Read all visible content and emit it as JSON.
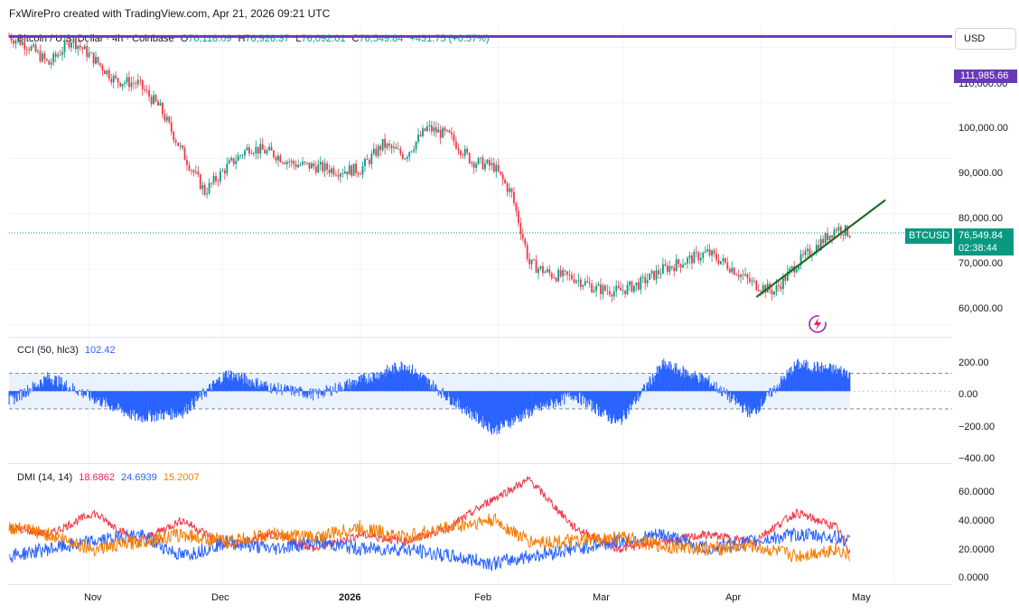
{
  "credit": "FxWirePro created with TradingView.com, Apr 21, 2026 09:21 UTC",
  "header": {
    "symbol": "Bitcoin / U.S. Dollar · 4h · Coinbase",
    "open_label": "O",
    "open": "76,118.09",
    "high_label": "H",
    "high": "76,926.37",
    "low_label": "L",
    "low": "76,092.01",
    "close_label": "C",
    "close": "76,549.84",
    "change": "+431.75 (+0.57%)"
  },
  "currency_button": "USD",
  "colors": {
    "up": "#089981",
    "down": "#f23645",
    "resistance": "#673ab7",
    "trendline": "#1b6e26",
    "cci": "#2962ff",
    "dmi_adx": "#f23645",
    "dmi_plus": "#2962ff",
    "dmi_minus": "#f57c00"
  },
  "price_pane": {
    "y_ticks": [
      "60,000.00",
      "70,000.00",
      "80,000.00",
      "90,000.00",
      "100,000.00",
      "110,000.00"
    ],
    "resistance_label": "111,985.66",
    "last_badge_symbol": "BTCUSD",
    "last_badge_price": "76,549.84",
    "last_badge_countdown": "02:38:44"
  },
  "cci_pane": {
    "legend_name": "CCI (50, hlc3)",
    "legend_value": "102.42",
    "y_ticks": [
      "200.00",
      "0.00",
      "−200.00",
      "−400.00"
    ]
  },
  "dmi_pane": {
    "legend_name": "DMI (14, 14)",
    "v1": "18.6862",
    "v2": "24.6939",
    "v3": "15.2007",
    "y_ticks": [
      "60.0000",
      "40.0000",
      "20.0000",
      "0.0000"
    ]
  },
  "time_axis": [
    "Nov",
    "Dec",
    "2026",
    "Feb",
    "Mar",
    "Apr",
    "May"
  ],
  "chart_data": [
    {
      "type": "line",
      "title": "Bitcoin / U.S. Dollar · 4h · Coinbase",
      "subtype": "candlestick",
      "x": [
        "2025-10-14",
        "2025-10-18",
        "2025-10-23",
        "2025-10-28",
        "2025-11-02",
        "2025-11-07",
        "2025-11-12",
        "2025-11-17",
        "2025-11-22",
        "2025-11-27",
        "2025-12-02",
        "2025-12-07",
        "2025-12-12",
        "2025-12-17",
        "2025-12-22",
        "2025-12-27",
        "2026-01-01",
        "2026-01-06",
        "2026-01-11",
        "2026-01-16",
        "2026-01-21",
        "2026-01-26",
        "2026-01-31",
        "2026-02-04",
        "2026-02-08",
        "2026-02-13",
        "2026-02-18",
        "2026-02-23",
        "2026-02-28",
        "2026-03-05",
        "2026-03-10",
        "2026-03-15",
        "2026-03-20",
        "2026-03-25",
        "2026-03-30",
        "2026-04-04",
        "2026-04-09",
        "2026-04-14",
        "2026-04-18",
        "2026-04-21"
      ],
      "close": [
        112000,
        110500,
        107000,
        111500,
        108000,
        104000,
        103500,
        99000,
        91000,
        84000,
        88500,
        92000,
        91000,
        89000,
        88500,
        87800,
        88000,
        92500,
        90500,
        95500,
        94000,
        89500,
        88500,
        83500,
        71000,
        69000,
        68500,
        66500,
        66000,
        67500,
        70000,
        71500,
        73000,
        70500,
        67500,
        66000,
        71000,
        74500,
        77500,
        76550
      ],
      "ylim": [
        58000,
        114000
      ],
      "horizontal_line": 111985.66,
      "trendline": [
        [
          "2026-03-31",
          65000
        ],
        [
          "2026-04-29",
          82500
        ]
      ]
    },
    {
      "type": "area",
      "title": "CCI (50, hlc3)",
      "x": [
        "2025-10-14",
        "2025-10-23",
        "2025-11-02",
        "2025-11-12",
        "2025-11-22",
        "2025-12-02",
        "2025-12-12",
        "2025-12-22",
        "2026-01-01",
        "2026-01-11",
        "2026-01-21",
        "2026-01-31",
        "2026-02-08",
        "2026-02-18",
        "2026-02-28",
        "2026-03-10",
        "2026-03-20",
        "2026-03-30",
        "2026-04-09",
        "2026-04-18",
        "2026-04-21"
      ],
      "values": [
        -60,
        80,
        -40,
        -150,
        -120,
        100,
        20,
        -20,
        60,
        150,
        -40,
        -220,
        -120,
        -20,
        -180,
        150,
        60,
        -130,
        150,
        120,
        102.42
      ],
      "bands": [
        100,
        -100
      ],
      "ylim": [
        -400,
        250
      ]
    },
    {
      "type": "line",
      "title": "DMI (14, 14)",
      "x": [
        "2025-10-14",
        "2025-10-23",
        "2025-11-02",
        "2025-11-12",
        "2025-11-22",
        "2025-12-02",
        "2025-12-12",
        "2025-12-22",
        "2026-01-01",
        "2026-01-11",
        "2026-01-21",
        "2026-01-31",
        "2026-02-08",
        "2026-02-18",
        "2026-02-28",
        "2026-03-10",
        "2026-03-20",
        "2026-03-30",
        "2026-04-09",
        "2026-04-18",
        "2026-04-21"
      ],
      "series": [
        {
          "name": "18.6862",
          "values": [
            35,
            30,
            45,
            25,
            40,
            22,
            30,
            20,
            30,
            25,
            35,
            55,
            68,
            35,
            20,
            25,
            30,
            25,
            45,
            35,
            18.6862
          ]
        },
        {
          "name": "24.6939",
          "values": [
            15,
            20,
            25,
            30,
            15,
            25,
            20,
            25,
            20,
            20,
            15,
            10,
            15,
            20,
            25,
            30,
            20,
            25,
            30,
            28,
            24.6939
          ]
        },
        {
          "name": "15.2007",
          "values": [
            35,
            30,
            20,
            25,
            30,
            25,
            30,
            28,
            35,
            28,
            35,
            40,
            25,
            25,
            28,
            22,
            20,
            22,
            15,
            20,
            15.2007
          ]
        }
      ],
      "ylim": [
        0,
        70
      ]
    }
  ]
}
